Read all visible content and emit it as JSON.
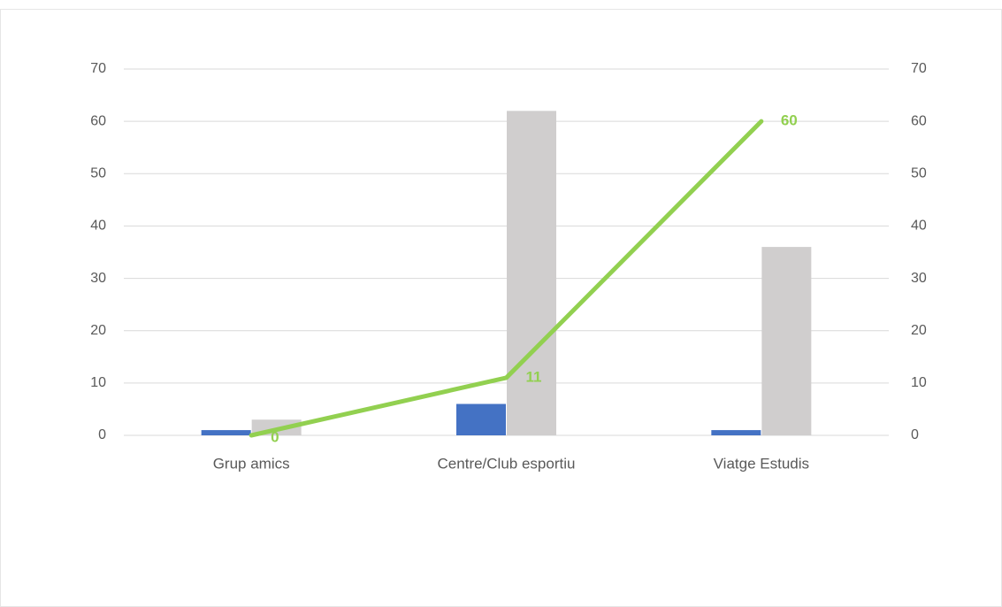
{
  "chart_data": {
    "type": "bar",
    "categories": [
      "Grup amics",
      "Centre/Club esportiu",
      "Viatge Estudis"
    ],
    "series": [
      {
        "type": "bar",
        "color": "#4472c4",
        "values": [
          1,
          6,
          1
        ]
      },
      {
        "type": "bar",
        "color": "#d0cece",
        "values": [
          3,
          62,
          36
        ]
      },
      {
        "type": "line",
        "color": "#92d050",
        "axis": "y2",
        "values": [
          0,
          11,
          60
        ],
        "data_labels": true
      }
    ],
    "ylim": [
      0,
      70
    ],
    "yticks": [
      0,
      10,
      20,
      30,
      40,
      50,
      60,
      70
    ],
    "y2lim": [
      0,
      70
    ],
    "y2ticks": [
      0,
      10,
      20,
      30,
      40,
      50,
      60,
      70
    ],
    "grid": true
  }
}
